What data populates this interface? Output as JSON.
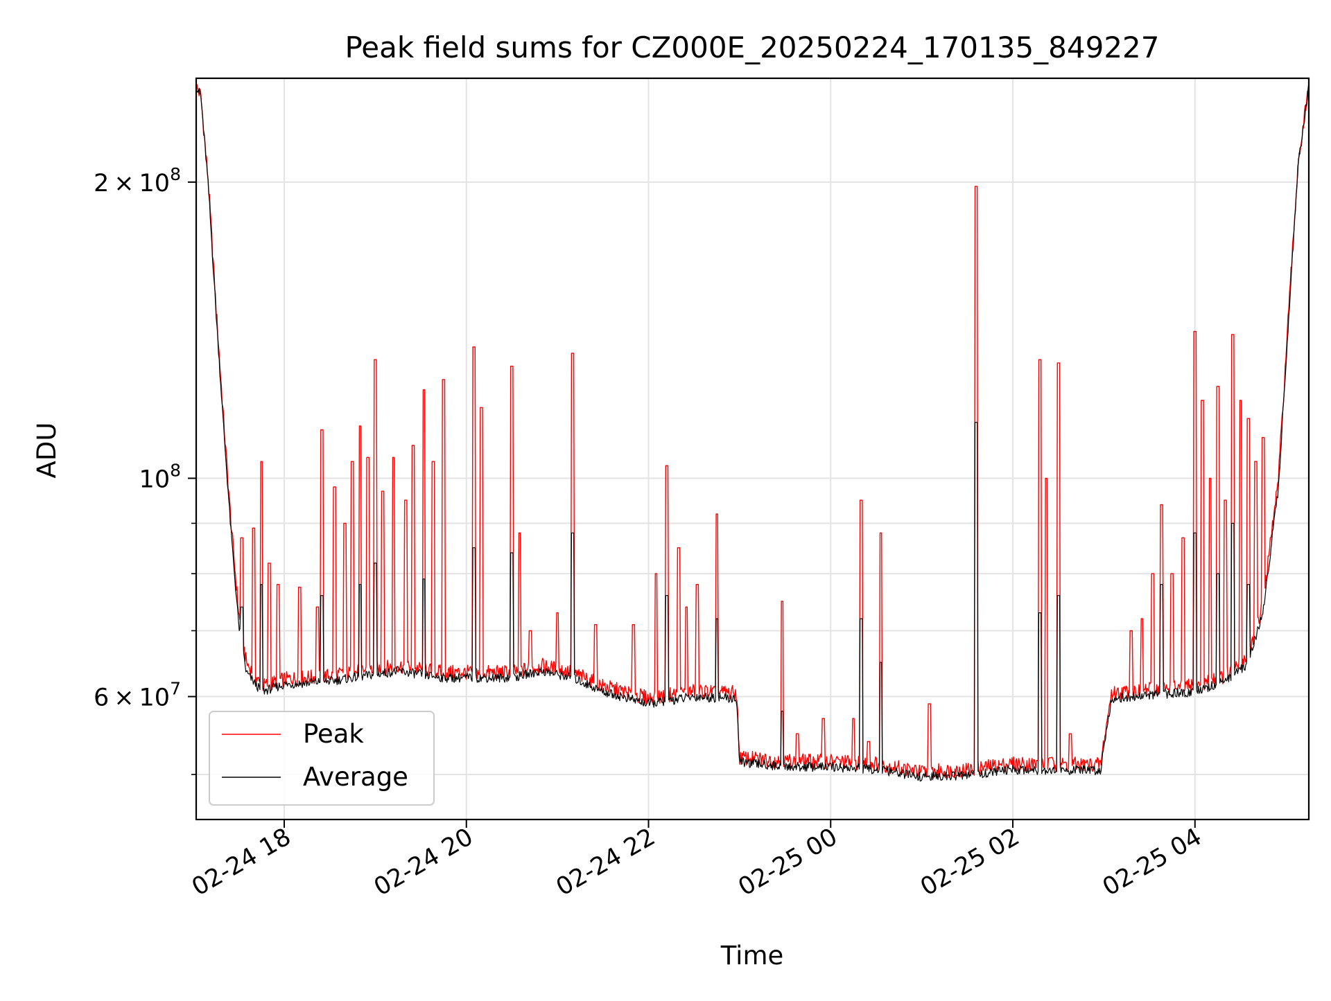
{
  "chart_data": {
    "type": "line",
    "title": "Peak field sums for CZ000E_20250224_170135_849227",
    "xlabel": "Time",
    "ylabel": "ADU",
    "yscale": "log",
    "ylim": [
      45000000,
      255000000
    ],
    "xlim": [
      "2025-02-24 17:02",
      "2025-02-25 05:15"
    ],
    "grid": true,
    "legend": "bottom-left",
    "x_ticks": [
      {
        "value": "2025-02-24 18:00",
        "label": "02-24 18"
      },
      {
        "value": "2025-02-24 20:00",
        "label": "02-24 20"
      },
      {
        "value": "2025-02-24 22:00",
        "label": "02-24 22"
      },
      {
        "value": "2025-02-25 00:00",
        "label": "02-25 00"
      },
      {
        "value": "2025-02-25 02:00",
        "label": "02-25 02"
      },
      {
        "value": "2025-02-25 04:00",
        "label": "02-25 04"
      }
    ],
    "y_ticks_major": [
      {
        "value": 60000000,
        "base": "6",
        "exp": "7",
        "mant": true
      },
      {
        "value": 100000000,
        "base": "10",
        "exp": "8",
        "mant": false
      },
      {
        "value": 200000000,
        "base": "2",
        "exp": "8",
        "mant": true
      }
    ],
    "y_ticks_minor": [
      50000000,
      70000000,
      80000000,
      90000000,
      300000000,
      400000000
    ],
    "series": [
      {
        "name": "Peak",
        "color": "#ff0000",
        "baseline": [
          [
            "2025-02-24 17:02",
            250000000
          ],
          [
            "2025-02-24 17:05",
            245000000
          ],
          [
            "2025-02-24 17:10",
            200000000
          ],
          [
            "2025-02-24 17:15",
            150000000
          ],
          [
            "2025-02-24 17:20",
            115000000
          ],
          [
            "2025-02-24 17:25",
            90000000
          ],
          [
            "2025-02-24 17:30",
            73000000
          ],
          [
            "2025-02-24 17:35",
            65000000
          ],
          [
            "2025-02-24 17:45",
            61500000
          ],
          [
            "2025-02-24 18:00",
            62500000
          ],
          [
            "2025-02-24 18:30",
            63000000
          ],
          [
            "2025-02-24 19:00",
            64000000
          ],
          [
            "2025-02-24 19:15",
            64500000
          ],
          [
            "2025-02-24 19:45",
            63500000
          ],
          [
            "2025-02-24 20:30",
            63500000
          ],
          [
            "2025-02-24 20:50",
            64500000
          ],
          [
            "2025-02-24 21:10",
            63500000
          ],
          [
            "2025-02-24 21:30",
            61500000
          ],
          [
            "2025-02-24 22:00",
            59800000
          ],
          [
            "2025-02-24 22:30",
            60800000
          ],
          [
            "2025-02-24 22:58",
            60500000
          ],
          [
            "2025-02-24 23:00",
            52000000
          ],
          [
            "2025-02-24 23:30",
            51600000
          ],
          [
            "2025-02-25 00:00",
            51600000
          ],
          [
            "2025-02-25 00:30",
            51300000
          ],
          [
            "2025-02-25 01:00",
            50300000
          ],
          [
            "2025-02-25 01:30",
            50600000
          ],
          [
            "2025-02-25 02:00",
            51300000
          ],
          [
            "2025-02-25 02:30",
            51200000
          ],
          [
            "2025-02-25 02:58",
            51200000
          ],
          [
            "2025-02-25 03:00",
            54000000
          ],
          [
            "2025-02-25 03:05",
            60500000
          ],
          [
            "2025-02-25 03:30",
            61000000
          ],
          [
            "2025-02-25 04:00",
            61500000
          ],
          [
            "2025-02-25 04:20",
            63000000
          ],
          [
            "2025-02-25 04:35",
            66000000
          ],
          [
            "2025-02-25 04:45",
            75000000
          ],
          [
            "2025-02-25 04:55",
            100000000
          ],
          [
            "2025-02-25 05:02",
            150000000
          ],
          [
            "2025-02-25 05:08",
            210000000
          ],
          [
            "2025-02-25 05:15",
            250000000
          ]
        ],
        "spikes": [
          [
            "2025-02-24 17:27",
            75000000
          ],
          [
            "2025-02-24 17:32",
            87000000
          ],
          [
            "2025-02-24 17:40",
            89000000
          ],
          [
            "2025-02-24 17:45",
            104000000
          ],
          [
            "2025-02-24 17:50",
            82000000
          ],
          [
            "2025-02-24 17:56",
            78000000
          ],
          [
            "2025-02-24 18:10",
            77500000
          ],
          [
            "2025-02-24 18:22",
            74000000
          ],
          [
            "2025-02-24 18:25",
            112000000
          ],
          [
            "2025-02-24 18:33",
            98000000
          ],
          [
            "2025-02-24 18:40",
            90000000
          ],
          [
            "2025-02-24 18:45",
            104000000
          ],
          [
            "2025-02-24 18:50",
            113000000
          ],
          [
            "2025-02-24 18:55",
            105000000
          ],
          [
            "2025-02-24 19:00",
            132000000
          ],
          [
            "2025-02-24 19:05",
            97000000
          ],
          [
            "2025-02-24 19:12",
            105000000
          ],
          [
            "2025-02-24 19:20",
            95000000
          ],
          [
            "2025-02-24 19:25",
            108000000
          ],
          [
            "2025-02-24 19:32",
            123000000
          ],
          [
            "2025-02-24 19:38",
            104000000
          ],
          [
            "2025-02-24 19:45",
            126000000
          ],
          [
            "2025-02-24 20:05",
            136000000
          ],
          [
            "2025-02-24 20:10",
            118000000
          ],
          [
            "2025-02-24 20:30",
            130000000
          ],
          [
            "2025-02-24 20:35",
            88000000
          ],
          [
            "2025-02-24 20:42",
            70000000
          ],
          [
            "2025-02-24 21:00",
            73000000
          ],
          [
            "2025-02-24 21:10",
            134000000
          ],
          [
            "2025-02-24 21:25",
            71000000
          ],
          [
            "2025-02-24 21:50",
            71000000
          ],
          [
            "2025-02-24 22:05",
            80000000
          ],
          [
            "2025-02-24 22:12",
            103000000
          ],
          [
            "2025-02-24 22:20",
            85000000
          ],
          [
            "2025-02-24 22:25",
            74000000
          ],
          [
            "2025-02-24 22:32",
            78000000
          ],
          [
            "2025-02-24 22:45",
            92000000
          ],
          [
            "2025-02-24 23:28",
            75000000
          ],
          [
            "2025-02-24 23:38",
            55000000
          ],
          [
            "2025-02-24 23:55",
            57000000
          ],
          [
            "2025-02-25 00:15",
            57000000
          ],
          [
            "2025-02-25 00:20",
            95000000
          ],
          [
            "2025-02-25 00:25",
            54000000
          ],
          [
            "2025-02-25 00:33",
            88000000
          ],
          [
            "2025-02-25 01:05",
            59000000
          ],
          [
            "2025-02-25 01:36",
            198000000
          ],
          [
            "2025-02-25 02:18",
            132000000
          ],
          [
            "2025-02-25 02:22",
            100000000
          ],
          [
            "2025-02-25 02:25",
            52000000
          ],
          [
            "2025-02-25 02:30",
            131000000
          ],
          [
            "2025-02-25 02:38",
            55000000
          ],
          [
            "2025-02-25 03:18",
            70000000
          ],
          [
            "2025-02-25 03:25",
            72000000
          ],
          [
            "2025-02-25 03:32",
            80000000
          ],
          [
            "2025-02-25 03:38",
            94000000
          ],
          [
            "2025-02-25 03:45",
            80000000
          ],
          [
            "2025-02-25 03:52",
            87000000
          ],
          [
            "2025-02-25 04:00",
            141000000
          ],
          [
            "2025-02-25 04:05",
            120000000
          ],
          [
            "2025-02-25 04:10",
            100000000
          ],
          [
            "2025-02-25 04:15",
            124000000
          ],
          [
            "2025-02-25 04:20",
            95000000
          ],
          [
            "2025-02-25 04:25",
            140000000
          ],
          [
            "2025-02-25 04:30",
            120000000
          ],
          [
            "2025-02-25 04:35",
            115000000
          ],
          [
            "2025-02-25 04:40",
            104000000
          ],
          [
            "2025-02-25 04:45",
            110000000
          ]
        ]
      },
      {
        "name": "Average",
        "color": "#000000",
        "baseline": [
          [
            "2025-02-24 17:02",
            250000000
          ],
          [
            "2025-02-24 17:05",
            245000000
          ],
          [
            "2025-02-24 17:10",
            198000000
          ],
          [
            "2025-02-24 17:15",
            148000000
          ],
          [
            "2025-02-24 17:20",
            113000000
          ],
          [
            "2025-02-24 17:25",
            88000000
          ],
          [
            "2025-02-24 17:30",
            71000000
          ],
          [
            "2025-02-24 17:35",
            63500000
          ],
          [
            "2025-02-24 17:45",
            60700000
          ],
          [
            "2025-02-24 18:00",
            61700000
          ],
          [
            "2025-02-24 18:30",
            62200000
          ],
          [
            "2025-02-24 19:00",
            63200000
          ],
          [
            "2025-02-24 19:15",
            63700000
          ],
          [
            "2025-02-24 19:45",
            62700000
          ],
          [
            "2025-02-24 20:30",
            62700000
          ],
          [
            "2025-02-24 20:50",
            63700000
          ],
          [
            "2025-02-24 21:10",
            62700000
          ],
          [
            "2025-02-24 21:30",
            60700000
          ],
          [
            "2025-02-24 22:00",
            59000000
          ],
          [
            "2025-02-24 22:30",
            60000000
          ],
          [
            "2025-02-24 22:58",
            59700000
          ],
          [
            "2025-02-24 23:00",
            51500000
          ],
          [
            "2025-02-24 23:30",
            50900000
          ],
          [
            "2025-02-25 00:00",
            50900000
          ],
          [
            "2025-02-25 00:30",
            50600000
          ],
          [
            "2025-02-25 01:00",
            49700000
          ],
          [
            "2025-02-25 01:30",
            49900000
          ],
          [
            "2025-02-25 02:00",
            50600000
          ],
          [
            "2025-02-25 02:30",
            50500000
          ],
          [
            "2025-02-25 02:58",
            50500000
          ],
          [
            "2025-02-25 03:00",
            53500000
          ],
          [
            "2025-02-25 03:05",
            59700000
          ],
          [
            "2025-02-25 03:30",
            60200000
          ],
          [
            "2025-02-25 04:00",
            60700000
          ],
          [
            "2025-02-25 04:20",
            62200000
          ],
          [
            "2025-02-25 04:35",
            64800000
          ],
          [
            "2025-02-25 04:45",
            73500000
          ],
          [
            "2025-02-25 04:55",
            98000000
          ],
          [
            "2025-02-25 05:02",
            148000000
          ],
          [
            "2025-02-25 05:08",
            208000000
          ],
          [
            "2025-02-25 05:15",
            250000000
          ]
        ],
        "spikes": [
          [
            "2025-02-24 17:27",
            70000000
          ],
          [
            "2025-02-24 17:32",
            74000000
          ],
          [
            "2025-02-24 17:45",
            78000000
          ],
          [
            "2025-02-24 18:25",
            76000000
          ],
          [
            "2025-02-24 18:50",
            78000000
          ],
          [
            "2025-02-24 19:00",
            82000000
          ],
          [
            "2025-02-24 19:32",
            79000000
          ],
          [
            "2025-02-24 20:05",
            85000000
          ],
          [
            "2025-02-24 20:30",
            84000000
          ],
          [
            "2025-02-24 21:10",
            88000000
          ],
          [
            "2025-02-24 22:12",
            76000000
          ],
          [
            "2025-02-24 22:45",
            72000000
          ],
          [
            "2025-02-24 23:28",
            58000000
          ],
          [
            "2025-02-25 00:20",
            72000000
          ],
          [
            "2025-02-25 00:33",
            65000000
          ],
          [
            "2025-02-25 01:36",
            114000000
          ],
          [
            "2025-02-25 02:18",
            73000000
          ],
          [
            "2025-02-25 02:30",
            76000000
          ],
          [
            "2025-02-25 03:38",
            78000000
          ],
          [
            "2025-02-25 04:00",
            88000000
          ],
          [
            "2025-02-25 04:15",
            80000000
          ],
          [
            "2025-02-25 04:25",
            90000000
          ],
          [
            "2025-02-25 04:35",
            78000000
          ]
        ]
      }
    ]
  }
}
